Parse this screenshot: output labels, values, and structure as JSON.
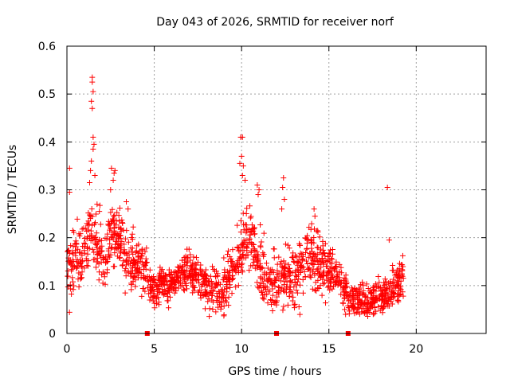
{
  "chart_data": {
    "type": "scatter",
    "title": "Day 043 of 2026, SRMTID for receiver norf",
    "xlabel": "GPS time / hours",
    "ylabel": "SRMTID / TECUs",
    "xlim": [
      0,
      24
    ],
    "ylim": [
      0,
      0.6
    ],
    "x_ticks": [
      0,
      5,
      10,
      15,
      20
    ],
    "x_tick_labels": [
      "0",
      "5",
      "10",
      "15",
      "20"
    ],
    "y_ticks": [
      0,
      0.1,
      0.2,
      0.3,
      0.4,
      0.5,
      0.6
    ],
    "y_tick_labels": [
      "0",
      "0.1",
      "0.2",
      "0.3",
      "0.4",
      "0.5",
      "0.6"
    ],
    "grid": true,
    "marker": "+",
    "series_color": "#ff0000",
    "data_extent_hours": [
      0,
      19.3
    ],
    "trend": [
      {
        "x": 0.0,
        "y": 0.14
      },
      {
        "x": 0.4,
        "y": 0.15
      },
      {
        "x": 0.8,
        "y": 0.15
      },
      {
        "x": 1.1,
        "y": 0.2
      },
      {
        "x": 1.4,
        "y": 0.23
      },
      {
        "x": 1.8,
        "y": 0.18
      },
      {
        "x": 2.2,
        "y": 0.15
      },
      {
        "x": 2.6,
        "y": 0.22
      },
      {
        "x": 3.0,
        "y": 0.19
      },
      {
        "x": 3.5,
        "y": 0.15
      },
      {
        "x": 4.0,
        "y": 0.15
      },
      {
        "x": 4.5,
        "y": 0.14
      },
      {
        "x": 4.8,
        "y": 0.09
      },
      {
        "x": 5.5,
        "y": 0.1
      },
      {
        "x": 6.0,
        "y": 0.1
      },
      {
        "x": 6.5,
        "y": 0.12
      },
      {
        "x": 7.0,
        "y": 0.13
      },
      {
        "x": 7.5,
        "y": 0.12
      },
      {
        "x": 8.0,
        "y": 0.1
      },
      {
        "x": 8.5,
        "y": 0.09
      },
      {
        "x": 9.0,
        "y": 0.09
      },
      {
        "x": 9.5,
        "y": 0.13
      },
      {
        "x": 10.0,
        "y": 0.17
      },
      {
        "x": 10.3,
        "y": 0.2
      },
      {
        "x": 10.7,
        "y": 0.18
      },
      {
        "x": 11.0,
        "y": 0.14
      },
      {
        "x": 11.5,
        "y": 0.11
      },
      {
        "x": 12.0,
        "y": 0.11
      },
      {
        "x": 12.5,
        "y": 0.13
      },
      {
        "x": 13.0,
        "y": 0.12
      },
      {
        "x": 13.5,
        "y": 0.15
      },
      {
        "x": 14.0,
        "y": 0.17
      },
      {
        "x": 14.5,
        "y": 0.14
      },
      {
        "x": 15.0,
        "y": 0.14
      },
      {
        "x": 15.5,
        "y": 0.12
      },
      {
        "x": 16.0,
        "y": 0.08
      },
      {
        "x": 16.5,
        "y": 0.07
      },
      {
        "x": 17.0,
        "y": 0.065
      },
      {
        "x": 17.5,
        "y": 0.07
      },
      {
        "x": 18.0,
        "y": 0.075
      },
      {
        "x": 18.5,
        "y": 0.09
      },
      {
        "x": 19.0,
        "y": 0.1
      },
      {
        "x": 19.3,
        "y": 0.13
      }
    ],
    "spread": [
      {
        "x": 0.0,
        "s": 0.04
      },
      {
        "x": 1.0,
        "s": 0.05
      },
      {
        "x": 3.0,
        "s": 0.05
      },
      {
        "x": 4.8,
        "s": 0.03
      },
      {
        "x": 8.0,
        "s": 0.03
      },
      {
        "x": 10.0,
        "s": 0.05
      },
      {
        "x": 12.0,
        "s": 0.04
      },
      {
        "x": 14.0,
        "s": 0.05
      },
      {
        "x": 16.0,
        "s": 0.025
      },
      {
        "x": 19.3,
        "s": 0.03
      }
    ],
    "outliers": [
      {
        "x": 0.15,
        "y": 0.345
      },
      {
        "x": 0.15,
        "y": 0.295
      },
      {
        "x": 1.45,
        "y": 0.535
      },
      {
        "x": 1.45,
        "y": 0.525
      },
      {
        "x": 1.5,
        "y": 0.505
      },
      {
        "x": 1.4,
        "y": 0.485
      },
      {
        "x": 1.45,
        "y": 0.47
      },
      {
        "x": 1.5,
        "y": 0.41
      },
      {
        "x": 1.55,
        "y": 0.395
      },
      {
        "x": 1.5,
        "y": 0.385
      },
      {
        "x": 1.4,
        "y": 0.36
      },
      {
        "x": 1.35,
        "y": 0.34
      },
      {
        "x": 1.6,
        "y": 0.33
      },
      {
        "x": 1.3,
        "y": 0.315
      },
      {
        "x": 2.55,
        "y": 0.345
      },
      {
        "x": 2.7,
        "y": 0.335
      },
      {
        "x": 2.75,
        "y": 0.34
      },
      {
        "x": 2.65,
        "y": 0.32
      },
      {
        "x": 2.5,
        "y": 0.3
      },
      {
        "x": 3.4,
        "y": 0.275
      },
      {
        "x": 3.5,
        "y": 0.26
      },
      {
        "x": 9.95,
        "y": 0.41
      },
      {
        "x": 10.05,
        "y": 0.41
      },
      {
        "x": 10.0,
        "y": 0.37
      },
      {
        "x": 9.9,
        "y": 0.355
      },
      {
        "x": 10.1,
        "y": 0.35
      },
      {
        "x": 10.05,
        "y": 0.33
      },
      {
        "x": 10.2,
        "y": 0.32
      },
      {
        "x": 10.9,
        "y": 0.31
      },
      {
        "x": 11.0,
        "y": 0.3
      },
      {
        "x": 10.95,
        "y": 0.29
      },
      {
        "x": 12.4,
        "y": 0.325
      },
      {
        "x": 12.35,
        "y": 0.305
      },
      {
        "x": 12.45,
        "y": 0.28
      },
      {
        "x": 12.3,
        "y": 0.26
      },
      {
        "x": 14.15,
        "y": 0.26
      },
      {
        "x": 14.2,
        "y": 0.245
      },
      {
        "x": 18.35,
        "y": 0.305
      },
      {
        "x": 18.45,
        "y": 0.195
      }
    ],
    "gap_markers": [
      {
        "x": 4.6,
        "y": 0
      },
      {
        "x": 12.0,
        "y": 0
      },
      {
        "x": 16.1,
        "y": 0
      }
    ]
  }
}
